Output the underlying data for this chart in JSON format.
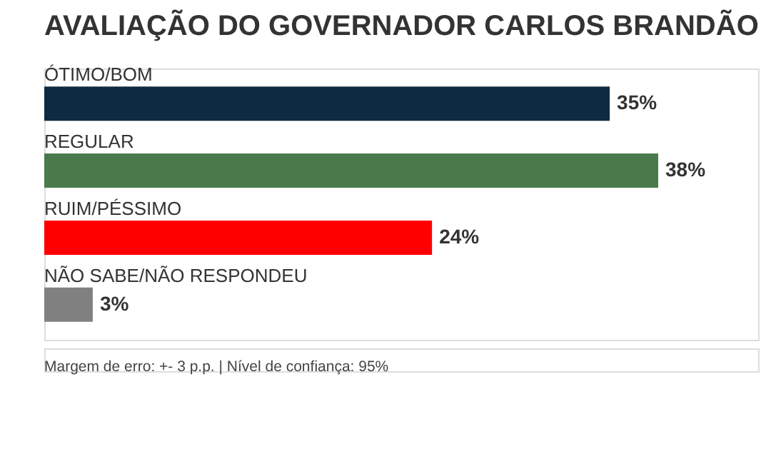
{
  "chart_data": {
    "type": "bar",
    "orientation": "horizontal",
    "title": "AVALIAÇÃO DO GOVERNADOR CARLOS BRANDÃO",
    "categories": [
      "ÓTIMO/BOM",
      "REGULAR",
      "RUIM/PÉSSIMO",
      "NÃO SABE/NÃO RESPONDEU"
    ],
    "values": [
      35,
      38,
      24,
      3
    ],
    "colors": [
      "#0d2a40",
      "#4a7a4c",
      "#ff0000",
      "#808080"
    ],
    "value_labels": [
      "35%",
      "38%",
      "24%",
      "3%"
    ],
    "annotations": [
      "Margem de erro: +- 3 p.p. | Nível de confiança: 95%"
    ],
    "grid": false,
    "legend": false
  }
}
